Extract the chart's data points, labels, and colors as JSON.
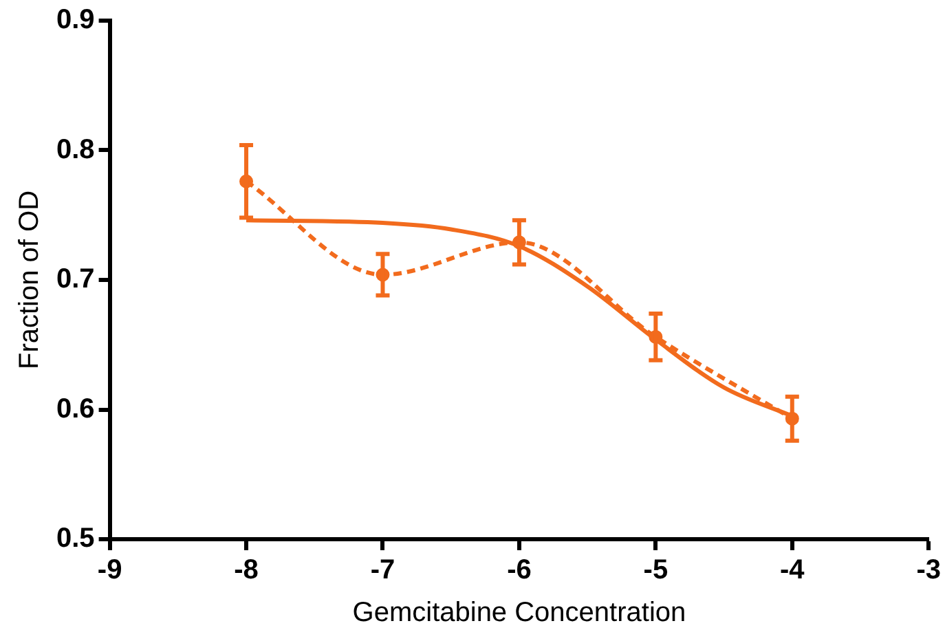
{
  "chart_data": {
    "type": "line",
    "xlabel": "Gemcitabine Concentration",
    "ylabel": "Fraction of OD",
    "xlim": [
      -9,
      -3
    ],
    "xticks": [
      -9,
      -8,
      -7,
      -6,
      -5,
      -4,
      -3
    ],
    "ylim": [
      0.5,
      0.9
    ],
    "yticks": [
      0.5,
      0.6,
      0.7,
      0.8,
      0.9
    ],
    "grid": false,
    "legend": false,
    "series": [
      {
        "type": "line",
        "color": "#f26b1d",
        "marker": "circle",
        "line_style": "dashed",
        "x": [
          -8,
          -7,
          -6,
          -5,
          -4
        ],
        "values": [
          0.776,
          0.704,
          0.729,
          0.656,
          0.593
        ],
        "errors": [
          0.028,
          0.016,
          0.017,
          0.018,
          0.017
        ]
      },
      {
        "type": "line",
        "color": "#f26b1d",
        "marker": "none",
        "line_style": "solid",
        "x": [
          -8,
          -7,
          -6.5,
          -6,
          -5.5,
          -5,
          -4.5,
          -4
        ],
        "values": [
          0.746,
          0.744,
          0.739,
          0.726,
          0.695,
          0.654,
          0.617,
          0.595
        ]
      }
    ]
  }
}
